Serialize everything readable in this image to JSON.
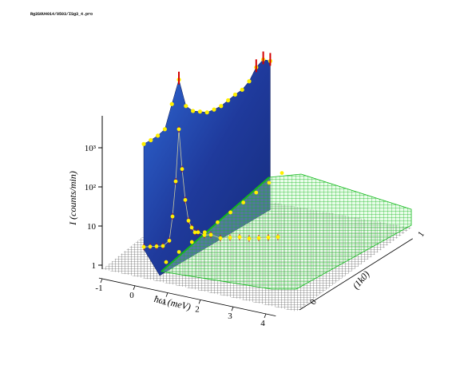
{
  "header_text": "Rg3S0U4014/0503/ISg3_4.pro",
  "chart_data": {
    "type": "surface-3d",
    "z_axis": {
      "label": "I (counts/min)",
      "scale": "log",
      "range": [
        1,
        3000
      ],
      "ticks": [
        {
          "value": 1,
          "label": "1"
        },
        {
          "value": 10,
          "label": "10"
        },
        {
          "value": 100,
          "label": "10²"
        },
        {
          "value": 1000,
          "label": "10³"
        }
      ]
    },
    "energy_axis": {
      "label": "ħω (meV)",
      "range": [
        -1,
        4.3
      ],
      "ticks": [
        {
          "value": -1,
          "label": "-1"
        },
        {
          "value": 0,
          "label": "0"
        },
        {
          "value": 1,
          "label": "1"
        },
        {
          "value": 2,
          "label": "2"
        },
        {
          "value": 3,
          "label": "3"
        },
        {
          "value": 4,
          "label": "4"
        }
      ]
    },
    "q_axis": {
      "label": "(1k0)",
      "range": [
        0,
        1
      ],
      "ticks": [
        {
          "value": 0,
          "label": "0"
        },
        {
          "value": 1,
          "label": "1"
        }
      ]
    },
    "back_profile": {
      "energy": [
        0,
        0.2,
        0.4,
        0.6,
        0.8,
        1.0,
        1.2,
        1.4,
        1.6,
        1.8,
        2.0,
        2.2,
        2.4,
        2.6,
        2.8,
        3.0,
        3.2,
        3.4,
        3.6
      ],
      "intensity": [
        150,
        170,
        200,
        260,
        900,
        3000,
        700,
        500,
        450,
        400,
        430,
        480,
        600,
        750,
        900,
        1300,
        2500,
        3500,
        3000
      ]
    },
    "front_profile": {
      "energy": [
        -0.4,
        -0.2,
        0,
        0.2,
        0.4,
        0.5,
        0.6,
        0.7,
        0.8,
        0.9,
        1.0,
        1.1,
        1.2,
        1.3,
        1.5,
        1.7,
        2.0,
        2.3,
        2.6,
        2.9,
        3.2,
        3.5,
        3.8
      ],
      "intensity": [
        1.5,
        1.5,
        1.5,
        1.5,
        2,
        8,
        60,
        1200,
        120,
        20,
        6,
        4,
        3,
        3,
        2.5,
        2.5,
        2,
        2,
        2,
        1.8,
        1.8,
        1.8,
        1.8
      ]
    },
    "diagonal_points": {
      "energy": [
        1.4,
        1.6,
        1.8,
        2.0,
        2.2,
        2.4,
        2.6,
        2.8,
        3.0,
        3.2
      ],
      "intensity": [
        2,
        3,
        4,
        5,
        7,
        9,
        12,
        16,
        20,
        25
      ]
    },
    "colors": {
      "blue_surface": "#1f3a9c",
      "blue_surface_light": "#2f6ad6",
      "green_mesh": "#12b81b",
      "floor_mesh": "#000000",
      "points": "#ffef00",
      "error_bars": "#d40000"
    }
  }
}
